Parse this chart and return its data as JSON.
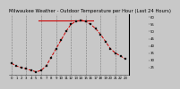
{
  "title": "Milwaukee Weather - Outdoor Temperature per Hour (Last 24 Hours)",
  "x_hours": [
    0,
    1,
    2,
    3,
    4,
    5,
    6,
    7,
    8,
    9,
    10,
    11,
    12,
    13,
    14,
    15,
    16,
    17,
    18,
    19,
    20,
    21,
    22,
    23
  ],
  "y_temps": [
    28,
    26,
    25,
    24,
    23,
    22,
    23,
    26,
    32,
    38,
    44,
    50,
    55,
    57,
    58,
    57,
    55,
    52,
    48,
    43,
    38,
    35,
    33,
    31
  ],
  "y_max_line": 58,
  "line_color": "#cc0000",
  "marker_color": "#111111",
  "max_line_color": "#cc0000",
  "bg_color": "#c8c8c8",
  "plot_bg_color": "#c8c8c8",
  "grid_color": "#666666",
  "ylim_min": 20,
  "ylim_max": 62,
  "yticks": [
    25,
    30,
    35,
    40,
    45,
    50,
    55,
    60
  ],
  "ytick_labels": [
    "25",
    "30",
    "35",
    "40",
    "45",
    "50",
    "55",
    "60"
  ],
  "xtick_positions": [
    0,
    1,
    2,
    3,
    4,
    5,
    6,
    7,
    8,
    9,
    10,
    11,
    12,
    13,
    14,
    15,
    16,
    17,
    18,
    19,
    20,
    21,
    22,
    23
  ],
  "xtick_labels": [
    "0",
    "1",
    "2",
    "3",
    "4",
    "5",
    "6",
    "7",
    "8",
    "9",
    "10",
    "11",
    "12",
    "13",
    "14",
    "15",
    "16",
    "17",
    "18",
    "19",
    "20",
    "21",
    "22",
    "23"
  ],
  "vgrid_positions": [
    0,
    3,
    6,
    9,
    12,
    15,
    18,
    21
  ],
  "title_fontsize": 3.8,
  "tick_fontsize": 2.8,
  "line_width": 0.7,
  "marker_size": 1.8,
  "right_bar_color": "#000000",
  "right_bar_width": 4
}
